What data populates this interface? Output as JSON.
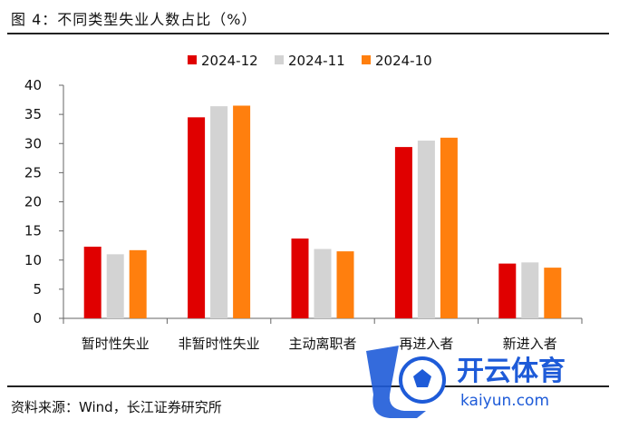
{
  "figure": {
    "title": "图 4：不同类型失业人数占比（%）",
    "source": "资料来源：Wind，长江证券研究所"
  },
  "watermark": {
    "text_cn": "开云体育",
    "text_en": "kaiyun.com"
  },
  "chart_data": {
    "type": "bar",
    "categories": [
      "暂时性失业",
      "非暂时性失业",
      "主动离职者",
      "再进入者",
      "新进入者"
    ],
    "series": [
      {
        "name": "2024-12",
        "color": "#e00000",
        "values": [
          12.3,
          34.5,
          13.7,
          29.4,
          9.4
        ]
      },
      {
        "name": "2024-11",
        "color": "#d3d3d3",
        "values": [
          11.0,
          36.4,
          11.9,
          30.5,
          9.6
        ]
      },
      {
        "name": "2024-10",
        "color": "#ff7f0e",
        "values": [
          11.7,
          36.5,
          11.5,
          31.0,
          8.7
        ]
      }
    ],
    "ylim": [
      0,
      40
    ],
    "yticks": [
      0,
      5,
      10,
      15,
      20,
      25,
      30,
      35,
      40
    ],
    "legend_position": "top-center",
    "grid": false
  }
}
